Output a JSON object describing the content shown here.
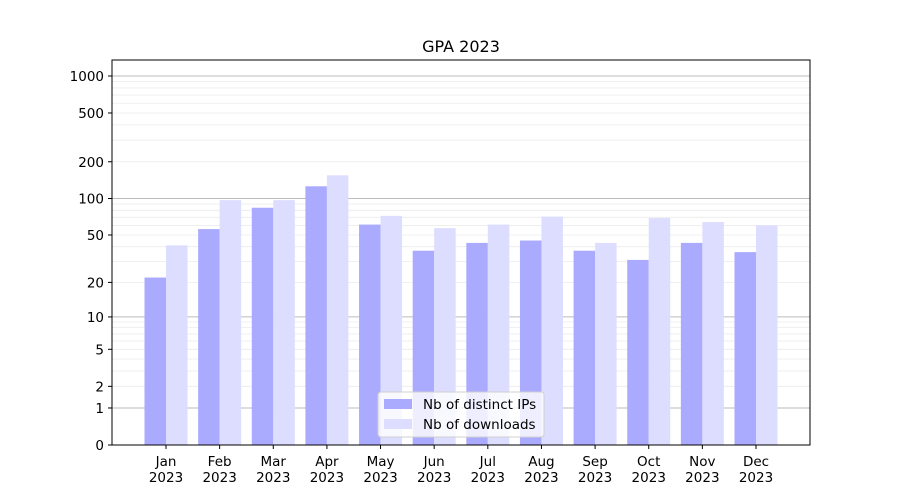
{
  "chart_data": {
    "type": "bar",
    "title": "GPA 2023",
    "xlabel": "",
    "ylabel": "",
    "yscale": "log(1+y)",
    "ylim": [
      0,
      1350
    ],
    "yticks": [
      0,
      1,
      2,
      5,
      10,
      20,
      50,
      100,
      200,
      500,
      1000
    ],
    "grid": true,
    "legend_position": "bottom-center",
    "categories": [
      "Jan\n2023",
      "Feb\n2023",
      "Mar\n2023",
      "Apr\n2023",
      "May\n2023",
      "Jun\n2023",
      "Jul\n2023",
      "Aug\n2023",
      "Sep\n2023",
      "Oct\n2023",
      "Nov\n2023",
      "Dec\n2023"
    ],
    "series": [
      {
        "name": "Nb of distinct IPs",
        "color": "#aaaaff",
        "values": [
          22,
          56,
          84,
          126,
          61,
          37,
          43,
          45,
          37,
          31,
          43,
          36
        ]
      },
      {
        "name": "Nb of downloads",
        "color": "#ddddff",
        "values": [
          41,
          97,
          97,
          155,
          72,
          57,
          61,
          71,
          43,
          69,
          64,
          60
        ]
      }
    ]
  }
}
